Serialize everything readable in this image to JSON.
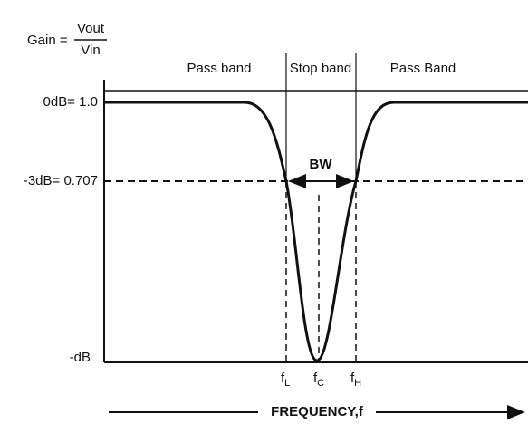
{
  "gain_label": {
    "prefix": "Gain =",
    "numerator": "Vout",
    "denominator": "Vin"
  },
  "bands": [
    "Pass band",
    "Stop band",
    "Pass Band"
  ],
  "y_labels": [
    "0dB= 1.0",
    "-3dB= 0.707",
    "-dB"
  ],
  "bandwidth_label": "BW",
  "frequency_markers": [
    {
      "main": "f",
      "sub": "L"
    },
    {
      "main": "f",
      "sub": "C"
    },
    {
      "main": "f",
      "sub": "H"
    }
  ],
  "x_axis_label": "FREQUENCY,f"
}
